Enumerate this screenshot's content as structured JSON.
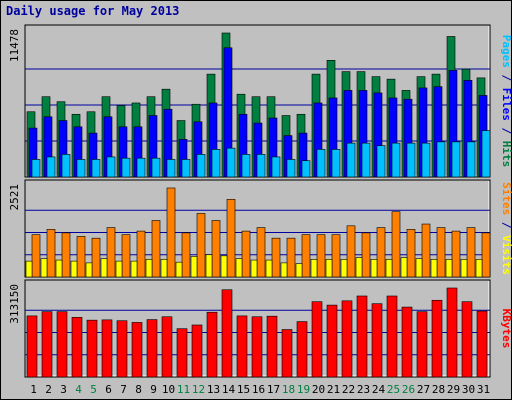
{
  "chart_data": {
    "type": "bar",
    "title": "Daily usage for May 2013",
    "days": [
      1,
      2,
      3,
      4,
      5,
      6,
      7,
      8,
      9,
      10,
      11,
      12,
      13,
      14,
      15,
      16,
      17,
      18,
      19,
      20,
      21,
      22,
      23,
      24,
      25,
      26,
      27,
      28,
      29,
      30,
      31
    ],
    "weekend_days": [
      4,
      5,
      11,
      12,
      18,
      19,
      25,
      26
    ],
    "panels": [
      {
        "id": "hits_files_pages",
        "ymax_label": "11478",
        "ymax": 11478,
        "series": [
          {
            "name": "Hits",
            "color": "#008040",
            "values": [
              5200,
              6400,
              6000,
              5000,
              5200,
              6400,
              5700,
              5900,
              6400,
              7000,
              4500,
              5800,
              8200,
              11478,
              6600,
              6400,
              6400,
              4900,
              5000,
              8200,
              9300,
              8400,
              8400,
              8000,
              7800,
              6900,
              8000,
              8200,
              11200,
              8600,
              7900
            ]
          },
          {
            "name": "Files",
            "color": "#0000ff",
            "values": [
              3900,
              4800,
              4500,
              4000,
              3500,
              4800,
              4000,
              4000,
              4900,
              5400,
              3000,
              4400,
              5900,
              10300,
              5000,
              4300,
              4700,
              3300,
              3500,
              5900,
              6300,
              6900,
              6900,
              6700,
              6300,
              6200,
              7100,
              7200,
              8500,
              7700,
              6500
            ]
          },
          {
            "name": "Pages",
            "color": "#00c0ff",
            "values": [
              1400,
              1600,
              1800,
              1400,
              1400,
              1600,
              1500,
              1500,
              1500,
              1400,
              1400,
              1800,
              2200,
              2300,
              1800,
              1800,
              1600,
              1400,
              1300,
              2200,
              2200,
              2700,
              2700,
              2500,
              2700,
              2700,
              2700,
              2800,
              2800,
              2800,
              3700
            ]
          }
        ]
      },
      {
        "id": "visits_sites",
        "ymax_label": "2521",
        "ymax": 2521,
        "series": [
          {
            "name": "Sites",
            "color": "#ff8000",
            "values": [
              1200,
              1350,
              1250,
              1150,
              1100,
              1400,
              1200,
              1300,
              1600,
              2521,
              1250,
              1800,
              1600,
              2200,
              1300,
              1400,
              1100,
              1100,
              1200,
              1200,
              1200,
              1450,
              1250,
              1400,
              1850,
              1350,
              1500,
              1400,
              1300,
              1400,
              1250
            ]
          },
          {
            "name": "Visits",
            "color": "#ffff00",
            "values": [
              450,
              520,
              480,
              450,
              400,
              520,
              450,
              450,
              500,
              500,
              420,
              580,
              630,
              600,
              520,
              480,
              480,
              400,
              380,
              500,
              500,
              500,
              550,
              500,
              500,
              550,
              520,
              500,
              500,
              500,
              500
            ]
          }
        ]
      },
      {
        "id": "kbytes",
        "ymax_label": "313150",
        "ymax": 313150,
        "series": [
          {
            "name": "KBytes",
            "color": "#ff0000",
            "values": [
              215000,
              230000,
              230000,
              210000,
              200000,
              201000,
              198000,
              192000,
              202000,
              212000,
              170000,
              183000,
              228000,
              307000,
              215000,
              212000,
              214000,
              167000,
              195000,
              265000,
              253000,
              268000,
              285000,
              258000,
              285000,
              246000,
              230000,
              270000,
              313150,
              265000,
              232000
            ]
          }
        ]
      }
    ],
    "legend": {
      "top": [
        {
          "text": "Pages",
          "color": "#00c0ff"
        },
        {
          "text": " / ",
          "color": "#0000a0"
        },
        {
          "text": "Files",
          "color": "#0000ff"
        },
        {
          "text": " / ",
          "color": "#0000a0"
        },
        {
          "text": "Hits",
          "color": "#008040"
        }
      ],
      "middle": [
        {
          "text": "Sites",
          "color": "#ff8000"
        },
        {
          "text": " / ",
          "color": "#0000a0"
        },
        {
          "text": "Visits",
          "color": "#ffff00"
        }
      ],
      "bottom": [
        {
          "text": "KBytes",
          "color": "#ff0000"
        }
      ]
    },
    "colors": {
      "frame_bg": "#c0c0c0",
      "plot_bg": "#c0c0c0",
      "grid": "#0000a0",
      "axis_label": "#000000",
      "weekday_label": "#000000",
      "weekend_label": "#008040"
    }
  }
}
